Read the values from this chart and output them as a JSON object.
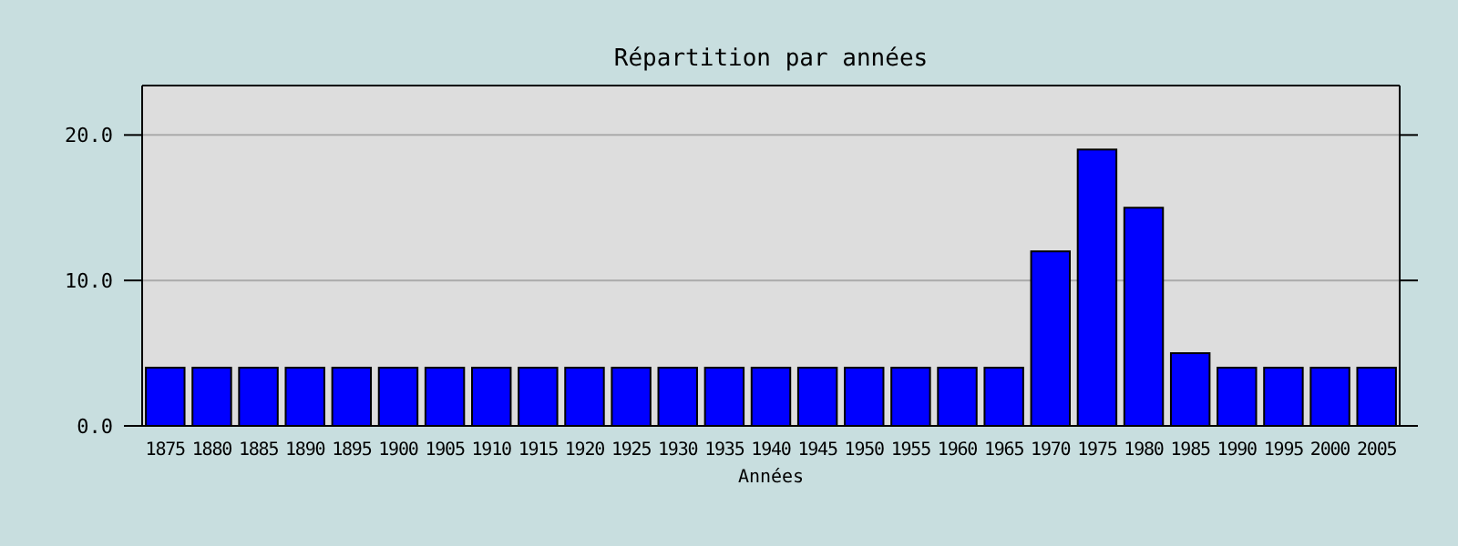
{
  "chart_data": {
    "type": "bar",
    "title": "Répartition par années",
    "xlabel": "Années",
    "categories": [
      "1875",
      "1880",
      "1885",
      "1890",
      "1895",
      "1900",
      "1905",
      "1910",
      "1915",
      "1920",
      "1925",
      "1930",
      "1935",
      "1940",
      "1945",
      "1950",
      "1955",
      "1960",
      "1965",
      "1970",
      "1975",
      "1980",
      "1985",
      "1990",
      "1995",
      "2000",
      "2005"
    ],
    "values": [
      4,
      4,
      4,
      4,
      4,
      4,
      4,
      4,
      4,
      4,
      4,
      4,
      4,
      4,
      4,
      4,
      4,
      4,
      4,
      12,
      19,
      15,
      5,
      4,
      4,
      4,
      4
    ],
    "color": "#0000ff",
    "ylim": [
      0,
      23.4
    ],
    "yticks": [
      {
        "value": 0,
        "label": "0.0"
      },
      {
        "value": 10,
        "label": "10.0"
      },
      {
        "value": 20,
        "label": "20.0"
      }
    ],
    "grid": "y"
  }
}
